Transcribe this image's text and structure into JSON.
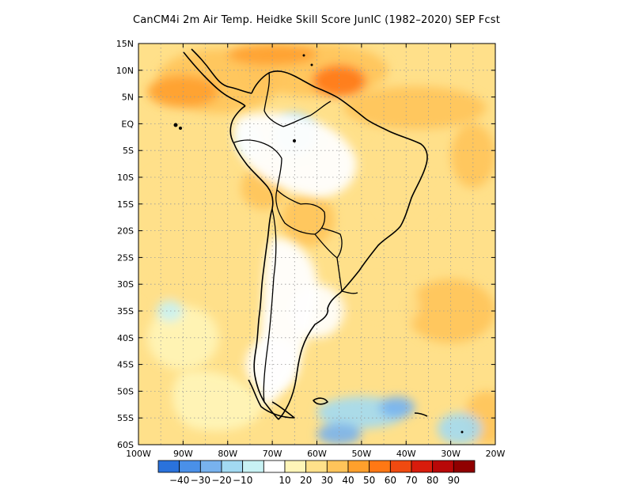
{
  "title": "CanCM4i  2m Air Temp. Heidke Skill Score JunIC (1982–2020) SEP Fcst",
  "map": {
    "lon_range": [
      -100,
      -20
    ],
    "lat_range": [
      -60,
      15
    ],
    "lat_ticks": [
      {
        "value": 15,
        "label": "15N"
      },
      {
        "value": 10,
        "label": "10N"
      },
      {
        "value": 5,
        "label": "5N"
      },
      {
        "value": 0,
        "label": "EQ"
      },
      {
        "value": -5,
        "label": "5S"
      },
      {
        "value": -10,
        "label": "10S"
      },
      {
        "value": -15,
        "label": "15S"
      },
      {
        "value": -20,
        "label": "20S"
      },
      {
        "value": -25,
        "label": "25S"
      },
      {
        "value": -30,
        "label": "30S"
      },
      {
        "value": -35,
        "label": "35S"
      },
      {
        "value": -40,
        "label": "40S"
      },
      {
        "value": -45,
        "label": "45S"
      },
      {
        "value": -50,
        "label": "50S"
      },
      {
        "value": -55,
        "label": "55S"
      },
      {
        "value": -60,
        "label": "60S"
      }
    ],
    "lon_ticks": [
      {
        "value": -100,
        "label": "100W"
      },
      {
        "value": -90,
        "label": "90W"
      },
      {
        "value": -80,
        "label": "80W"
      },
      {
        "value": -70,
        "label": "70W"
      },
      {
        "value": -60,
        "label": "60W"
      },
      {
        "value": -50,
        "label": "50W"
      },
      {
        "value": -40,
        "label": "40W"
      },
      {
        "value": -30,
        "label": "30W"
      },
      {
        "value": -20,
        "label": "20W"
      }
    ],
    "grid": "dotted, every 5 degrees"
  },
  "colorbar": {
    "labels": [
      "-40",
      "-30",
      "-20",
      "-10",
      "10",
      "20",
      "30",
      "40",
      "50",
      "60",
      "70",
      "80",
      "90"
    ],
    "colors": [
      "#2a72dc",
      "#4a90e8",
      "#78b2ee",
      "#a2daf2",
      "#c8f2f4",
      "#ffffff",
      "#fff5b8",
      "#ffe08a",
      "#ffc45a",
      "#ffa02c",
      "#ff7814",
      "#f04a10",
      "#d81c0c",
      "#b80808",
      "#900000"
    ]
  },
  "field": [
    {
      "lon": -82,
      "lat": 8,
      "rx": 14,
      "ry": 6,
      "level": 8
    },
    {
      "lon": -90,
      "lat": 6,
      "rx": 8,
      "ry": 3,
      "level": 9
    },
    {
      "lon": -60,
      "lat": 10,
      "rx": 16,
      "ry": 5,
      "level": 8
    },
    {
      "lon": -55,
      "lat": 8,
      "rx": 6,
      "ry": 3,
      "level": 10
    },
    {
      "lon": -70,
      "lat": 13,
      "rx": 10,
      "ry": 2,
      "level": 9
    },
    {
      "lon": -38,
      "lat": 3,
      "rx": 16,
      "ry": 4,
      "level": 8
    },
    {
      "lon": -25,
      "lat": -6,
      "rx": 5,
      "ry": 6,
      "level": 8
    },
    {
      "lon": -40,
      "lat": -10,
      "rx": 8,
      "ry": 8,
      "level": 7
    },
    {
      "lon": -72,
      "lat": -12,
      "rx": 5,
      "ry": 4,
      "level": 8
    },
    {
      "lon": -62,
      "lat": -18,
      "rx": 6,
      "ry": 5,
      "level": 8
    },
    {
      "lon": -92,
      "lat": -20,
      "rx": 10,
      "ry": 12,
      "level": 7
    },
    {
      "lon": -30,
      "lat": -35,
      "rx": 10,
      "ry": 6,
      "level": 8
    },
    {
      "lon": -45,
      "lat": -34,
      "rx": 8,
      "ry": 5,
      "level": 7
    },
    {
      "lon": -90,
      "lat": -40,
      "rx": 8,
      "ry": 6,
      "level": 6
    },
    {
      "lon": -22,
      "lat": -55,
      "rx": 5,
      "ry": 5,
      "level": 8
    },
    {
      "lon": -65,
      "lat": -2,
      "rx": 5,
      "ry": 4,
      "level": 3
    },
    {
      "lon": -75,
      "lat": -3,
      "rx": 3,
      "ry": 3,
      "level": 4
    },
    {
      "lon": -50,
      "lat": -54,
      "rx": 10,
      "ry": 3,
      "level": 3
    },
    {
      "lon": -55,
      "lat": -58,
      "rx": 5,
      "ry": 2,
      "level": 2
    },
    {
      "lon": -42,
      "lat": -53,
      "rx": 4,
      "ry": 2,
      "level": 2
    },
    {
      "lon": -28,
      "lat": -57,
      "rx": 5,
      "ry": 3,
      "level": 3
    },
    {
      "lon": -93,
      "lat": -35,
      "rx": 3,
      "ry": 2,
      "level": 4
    },
    {
      "lon": -60,
      "lat": -35,
      "rx": 6,
      "ry": 5,
      "level": 5
    },
    {
      "lon": -70,
      "lat": -45,
      "rx": 6,
      "ry": 5,
      "level": 5
    }
  ]
}
